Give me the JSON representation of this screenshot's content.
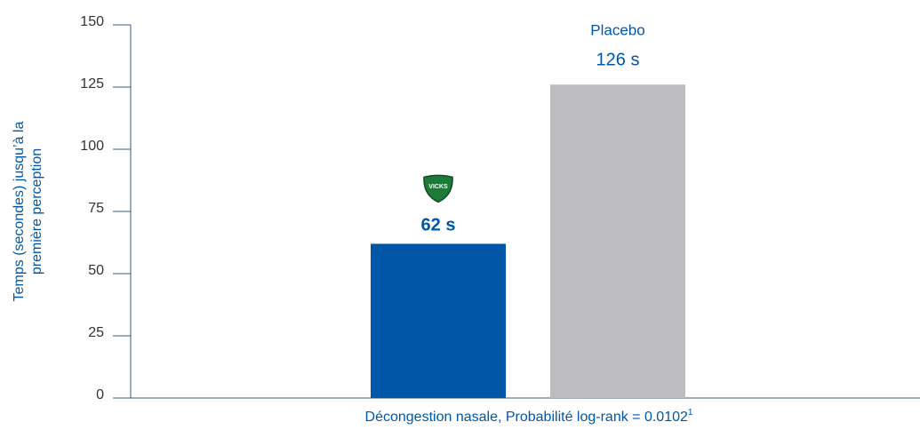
{
  "chart_data": {
    "type": "bar",
    "ylabel": [
      "Temps (secondes) jusqu’à la",
      "première perception"
    ],
    "xlabel": "Décongestion nasale, Probabilité log-rank = 0.0102",
    "xlabel_footnote": "1",
    "categories": [
      "VICKS",
      "Placebo"
    ],
    "values": [
      62,
      126
    ],
    "value_labels": [
      "62 s",
      "126 s"
    ],
    "colors": [
      "#0057a8",
      "#bdbdc1"
    ],
    "ylim": [
      0,
      150
    ],
    "yticks": [
      0,
      25,
      50,
      75,
      100,
      125,
      150
    ],
    "grid": false
  }
}
